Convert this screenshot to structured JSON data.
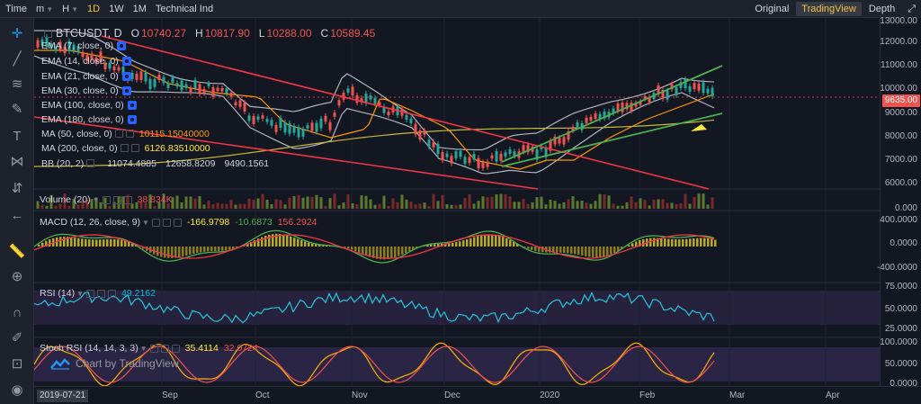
{
  "toolbar": {
    "items": [
      "Time",
      "m",
      "H",
      "1D",
      "1W",
      "1M",
      "Technical Ind"
    ],
    "right": [
      "Original",
      "TradingView",
      "Depth"
    ],
    "selected_view": "TradingView"
  },
  "ohlc": {
    "symbol": "BTCUSDT, D",
    "open_label": "O",
    "open": "10740.27",
    "high_label": "H",
    "high": "10817.90",
    "low_label": "L",
    "low": "10288.00",
    "close_label": "C",
    "close": "10589.45"
  },
  "indicators": [
    {
      "name": "EMA (7, close, 0)",
      "values": []
    },
    {
      "name": "EMA (14, close, 0)",
      "values": []
    },
    {
      "name": "EMA (21, close, 0)",
      "values": []
    },
    {
      "name": "EMA (30, close, 0)",
      "values": []
    },
    {
      "name": "EMA (100, close, 0)",
      "values": []
    },
    {
      "name": "EMA (180, close, 0)",
      "values": []
    },
    {
      "name": "MA (50, close, 0)",
      "values": [
        "10115.15040000"
      ]
    },
    {
      "name": "MA (200, close, 0)",
      "values": [
        "6126.83510000"
      ]
    },
    {
      "name": "BB (20, 2)",
      "values": [
        "11074.4885",
        "12658.8209",
        "9490.1561"
      ]
    }
  ],
  "panes": {
    "volume": {
      "name": "Volume (20)",
      "value": "38.834K"
    },
    "macd": {
      "name": "MACD (12, 26, close, 9)",
      "values": [
        "-166.9798",
        "-10.6873",
        "156.2924"
      ]
    },
    "rsi": {
      "name": "RSI (14)",
      "value": "49.2162"
    },
    "stoch": {
      "name": "Stoch RSI (14, 14, 3, 3)",
      "values": [
        "35.4114",
        "32.0724"
      ]
    }
  },
  "price_scale": {
    "labels": [
      "13000.00",
      "12000.00",
      "11000.00",
      "10000.00",
      "9000.00",
      "8000.00",
      "7000.00",
      "6000.00"
    ],
    "current": "9635.00",
    "volume_label": "0.000",
    "macd_labels": [
      "400.0000",
      "0.0000",
      "-400.0000"
    ],
    "rsi_labels": [
      "75.0000",
      "50.0000",
      "25.0000"
    ],
    "stoch_labels": [
      "100.0000",
      "50.0000",
      "0.0000"
    ]
  },
  "time_axis": [
    "2019-07-21",
    "Sep",
    "Oct",
    "Nov",
    "Dec",
    "2020",
    "Feb",
    "Mar",
    "Apr"
  ],
  "brand": "Chart by TradingView",
  "colors": {
    "background": "#131722",
    "up": "#26a69a",
    "down": "#ef5350",
    "trend_red": "#f23645",
    "trend_green": "#4caf50",
    "accent_yellow": "#ffeb3b"
  },
  "icons": [
    "crosshair-icon",
    "trendline-icon",
    "fib-icon",
    "brush-icon",
    "text-icon",
    "pattern-icon",
    "prediction-icon",
    "back-arrow-icon",
    "ruler-icon",
    "zoom-icon",
    "magnet-icon",
    "pencil-lock-icon",
    "lock-icon",
    "eye-icon"
  ]
}
